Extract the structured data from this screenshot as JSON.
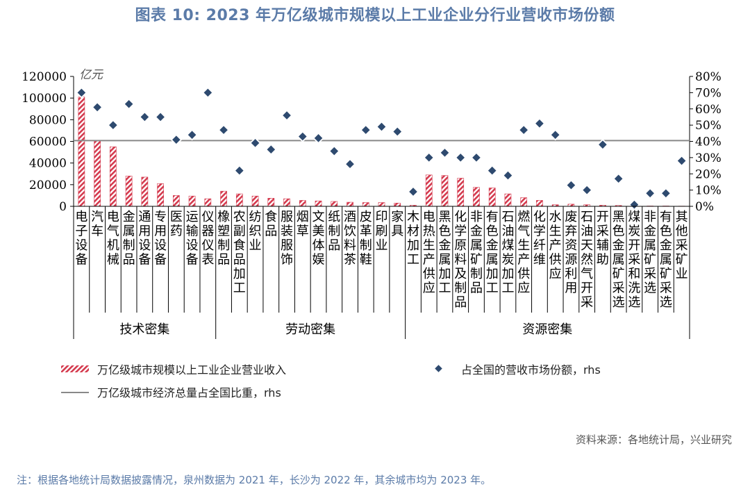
{
  "title": "图表 10: 2023 年万亿级城市规模以上工业企业分行业营收市场份额",
  "source": "资料来源：各地统计局，兴业研究",
  "note": "注：根据各地统计局数据披露情况，泉州数据为 2021 年，长沙为 2022 年，其余城市均为 2023 年。",
  "chart_data": {
    "type": "bar",
    "title": "图表 10: 2023 年万亿级城市规模以上工业企业分行业营收市场份额",
    "y_unit": "亿元",
    "ylim": [
      0,
      120000
    ],
    "y_ticks": [
      "0",
      "20000",
      "40000",
      "60000",
      "80000",
      "100000",
      "120000"
    ],
    "y2lim": [
      0,
      0.8
    ],
    "y2_ticks": [
      "0%",
      "10%",
      "20%",
      "30%",
      "40%",
      "50%",
      "60%",
      "70%",
      "80%"
    ],
    "categories": [
      "电子设备",
      "汽车",
      "电气机械",
      "金属制品",
      "通用设备",
      "专用设备",
      "医药",
      "运输设备",
      "仪器仪表",
      "橡塑制品",
      "农副食品加工",
      "纺织业",
      "食品",
      "服装服饰",
      "烟草",
      "文美体娱",
      "纸制品",
      "酒饮料茶",
      "皮革制鞋",
      "印刷业",
      "家具",
      "木材加工",
      "电热生产供应",
      "黑色金属加工",
      "化学原料及制品",
      "非金属矿制品",
      "有色金属加工",
      "石油煤炭加工",
      "燃气生产供应",
      "化学纤维",
      "水生产供应",
      "废弃资源利用",
      "石油天然气开采",
      "开采辅助",
      "黑色金属矿采选",
      "煤炭开采和洗选",
      "非金属矿采选",
      "有色金属矿采选",
      "其他采矿业"
    ],
    "groups": [
      {
        "label": "技术密集",
        "start": 0,
        "end": 8
      },
      {
        "label": "劳动密集",
        "start": 9,
        "end": 20
      },
      {
        "label": "资源密集",
        "start": 21,
        "end": 38
      }
    ],
    "series": [
      {
        "name": "万亿级城市规模以上工业企业营业收入",
        "axis": "left",
        "type": "bar",
        "values": [
          101000,
          61000,
          55000,
          28000,
          27000,
          21000,
          10000,
          9500,
          7000,
          14000,
          11500,
          9500,
          7500,
          7000,
          5500,
          5000,
          4500,
          3800,
          3500,
          3500,
          3000,
          1000,
          29000,
          28500,
          26000,
          17500,
          17000,
          11500,
          8000,
          5500,
          1500,
          2000,
          1500,
          1000,
          800,
          300,
          300,
          300,
          200
        ]
      },
      {
        "name": "占全国的营收市场份额，rhs",
        "axis": "right",
        "type": "scatter",
        "values": [
          0.7,
          0.61,
          0.5,
          0.63,
          0.55,
          0.55,
          0.41,
          0.44,
          0.7,
          0.47,
          0.22,
          0.39,
          0.35,
          0.56,
          0.43,
          0.42,
          0.34,
          0.26,
          0.47,
          0.49,
          0.46,
          0.09,
          0.3,
          0.33,
          0.3,
          0.3,
          0.22,
          0.19,
          0.47,
          0.51,
          0.44,
          0.13,
          0.1,
          0.38,
          0.17,
          0.01,
          0.08,
          0.08,
          0.28
        ]
      },
      {
        "name": "万亿级城市经济总量占全国比重，rhs",
        "axis": "right",
        "type": "line",
        "value": 0.405
      }
    ],
    "colors": {
      "bar": "#d43a4e",
      "marker_fill": "#2e4a6f",
      "marker_stroke": "#ffffff",
      "line": "#888888"
    }
  }
}
